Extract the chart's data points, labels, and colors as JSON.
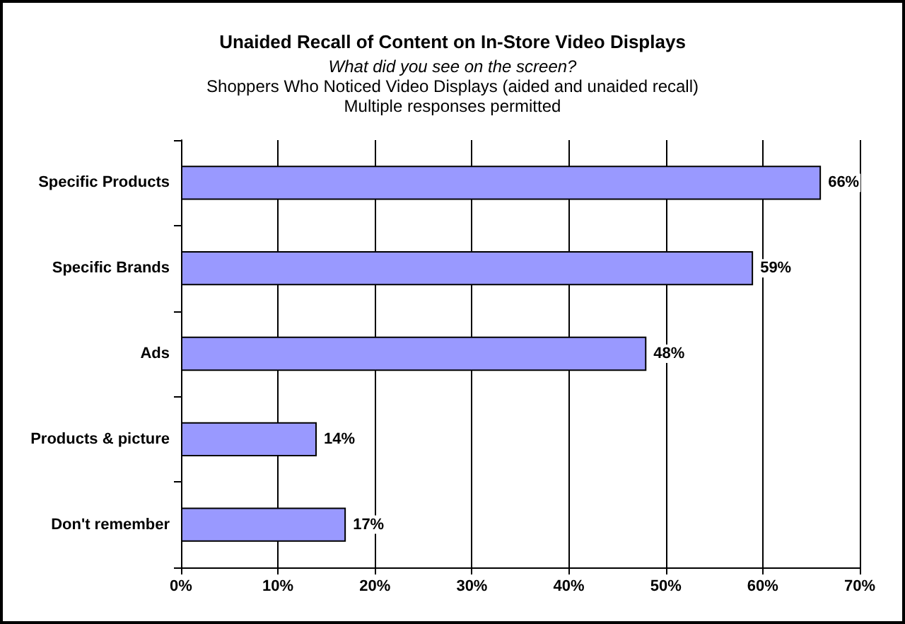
{
  "chart_data": {
    "type": "bar",
    "orientation": "horizontal",
    "title": "Unaided Recall of Content on In-Store Video Displays",
    "subtitle": "What did you see on the screen?",
    "annotations": [
      "Shoppers Who Noticed Video Displays (aided and unaided recall)",
      "Multiple responses permitted"
    ],
    "categories": [
      "Specific Products",
      "Specific Brands",
      "Ads",
      "Products & picture",
      "Don't remember"
    ],
    "values": [
      66,
      59,
      48,
      14,
      17
    ],
    "color": "#9999ff",
    "value_labels": [
      "66%",
      "59%",
      "48%",
      "14%",
      "17%"
    ],
    "xlim": [
      0,
      70
    ],
    "xticks": [
      {
        "value": 0,
        "label": "0%"
      },
      {
        "value": 10,
        "label": "10%"
      },
      {
        "value": 20,
        "label": "20%"
      },
      {
        "value": 30,
        "label": "30%"
      },
      {
        "value": 40,
        "label": "40%"
      },
      {
        "value": 50,
        "label": "50%"
      },
      {
        "value": 60,
        "label": "60%"
      },
      {
        "value": 70,
        "label": "70%"
      }
    ],
    "grid": "x"
  }
}
